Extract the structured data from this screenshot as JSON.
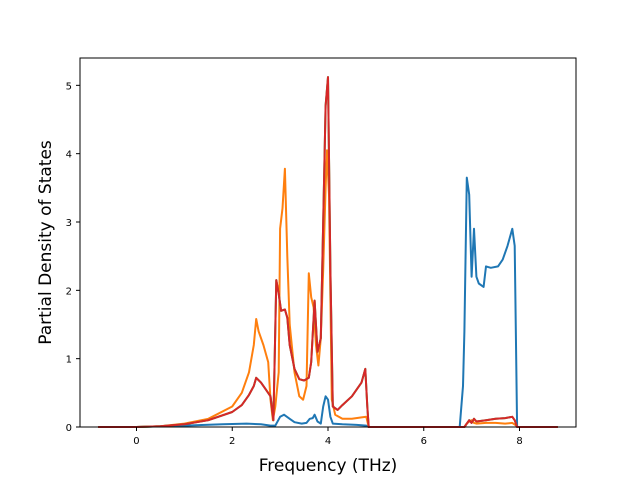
{
  "chart_data": {
    "type": "line",
    "title": "",
    "xlabel": "Frequency (THz)",
    "ylabel": "Partial Density of States",
    "xlim": [
      -1.18,
      9.18
    ],
    "ylim": [
      0,
      5.4
    ],
    "xticks": [
      0,
      2,
      4,
      6,
      8
    ],
    "yticks": [
      0,
      1,
      2,
      3,
      4,
      5
    ],
    "grid": false,
    "legend": "none",
    "series": [
      {
        "color": "#1f77b4",
        "points": [
          [
            -0.8,
            0
          ],
          [
            0,
            0
          ],
          [
            1,
            0.02
          ],
          [
            1.8,
            0.04
          ],
          [
            2.3,
            0.05
          ],
          [
            2.6,
            0.04
          ],
          [
            2.8,
            0.02
          ],
          [
            2.9,
            0.02
          ],
          [
            3.0,
            0.15
          ],
          [
            3.08,
            0.18
          ],
          [
            3.2,
            0.12
          ],
          [
            3.3,
            0.07
          ],
          [
            3.45,
            0.05
          ],
          [
            3.55,
            0.06
          ],
          [
            3.62,
            0.12
          ],
          [
            3.68,
            0.13
          ],
          [
            3.72,
            0.18
          ],
          [
            3.78,
            0.08
          ],
          [
            3.85,
            0.05
          ],
          [
            3.9,
            0.3
          ],
          [
            3.95,
            0.45
          ],
          [
            4.0,
            0.4
          ],
          [
            4.05,
            0.15
          ],
          [
            4.1,
            0.05
          ],
          [
            4.3,
            0.04
          ],
          [
            4.6,
            0.03
          ],
          [
            4.8,
            0.02
          ],
          [
            4.85,
            0
          ],
          [
            5,
            0
          ],
          [
            6.5,
            0
          ],
          [
            6.75,
            0
          ],
          [
            6.82,
            0.6
          ],
          [
            6.85,
            1.4
          ],
          [
            6.9,
            3.65
          ],
          [
            6.95,
            3.4
          ],
          [
            7.0,
            2.2
          ],
          [
            7.05,
            2.9
          ],
          [
            7.1,
            2.2
          ],
          [
            7.15,
            2.1
          ],
          [
            7.25,
            2.05
          ],
          [
            7.3,
            2.35
          ],
          [
            7.4,
            2.33
          ],
          [
            7.55,
            2.35
          ],
          [
            7.65,
            2.45
          ],
          [
            7.75,
            2.65
          ],
          [
            7.85,
            2.9
          ],
          [
            7.9,
            2.65
          ],
          [
            7.93,
            1.0
          ],
          [
            7.95,
            0
          ],
          [
            8.8,
            0
          ]
        ]
      },
      {
        "color": "#ff7f0e",
        "points": [
          [
            -0.8,
            0
          ],
          [
            0,
            0
          ],
          [
            0.5,
            0.01
          ],
          [
            1,
            0.05
          ],
          [
            1.5,
            0.12
          ],
          [
            2.0,
            0.3
          ],
          [
            2.2,
            0.5
          ],
          [
            2.35,
            0.8
          ],
          [
            2.45,
            1.2
          ],
          [
            2.5,
            1.58
          ],
          [
            2.55,
            1.4
          ],
          [
            2.65,
            1.2
          ],
          [
            2.75,
            0.95
          ],
          [
            2.8,
            0.4
          ],
          [
            2.85,
            0.1
          ],
          [
            2.9,
            0.3
          ],
          [
            2.97,
            0.8
          ],
          [
            3.0,
            2.9
          ],
          [
            3.05,
            3.2
          ],
          [
            3.1,
            3.78
          ],
          [
            3.15,
            2.5
          ],
          [
            3.2,
            1.5
          ],
          [
            3.3,
            0.8
          ],
          [
            3.4,
            0.45
          ],
          [
            3.48,
            0.4
          ],
          [
            3.55,
            0.6
          ],
          [
            3.6,
            2.25
          ],
          [
            3.65,
            1.9
          ],
          [
            3.7,
            1.75
          ],
          [
            3.75,
            1.2
          ],
          [
            3.8,
            0.9
          ],
          [
            3.85,
            1.3
          ],
          [
            3.9,
            2.3
          ],
          [
            3.95,
            3.5
          ],
          [
            3.98,
            4.05
          ],
          [
            4.02,
            3.4
          ],
          [
            4.08,
            0.4
          ],
          [
            4.15,
            0.18
          ],
          [
            4.3,
            0.12
          ],
          [
            4.5,
            0.12
          ],
          [
            4.7,
            0.14
          ],
          [
            4.8,
            0.15
          ],
          [
            4.85,
            0
          ],
          [
            5,
            0
          ],
          [
            6.5,
            0
          ],
          [
            6.85,
            0
          ],
          [
            6.9,
            0.05
          ],
          [
            6.95,
            0.08
          ],
          [
            7.0,
            0.1
          ],
          [
            7.05,
            0.06
          ],
          [
            7.1,
            0.05
          ],
          [
            7.3,
            0.06
          ],
          [
            7.5,
            0.06
          ],
          [
            7.7,
            0.05
          ],
          [
            7.85,
            0.06
          ],
          [
            7.93,
            0.02
          ],
          [
            7.95,
            0
          ],
          [
            8.8,
            0
          ]
        ]
      },
      {
        "color": "#2ca02c",
        "points": [
          [
            -0.8,
            0
          ],
          [
            0,
            0
          ],
          [
            0.5,
            0.01
          ],
          [
            1,
            0.04
          ],
          [
            1.5,
            0.1
          ],
          [
            2.0,
            0.22
          ],
          [
            2.2,
            0.32
          ],
          [
            2.35,
            0.47
          ],
          [
            2.45,
            0.6
          ],
          [
            2.5,
            0.72
          ],
          [
            2.6,
            0.65
          ],
          [
            2.7,
            0.55
          ],
          [
            2.8,
            0.45
          ],
          [
            2.86,
            0.1
          ],
          [
            2.92,
            2.15
          ],
          [
            2.97,
            1.95
          ],
          [
            3.02,
            1.7
          ],
          [
            3.1,
            1.72
          ],
          [
            3.15,
            1.6
          ],
          [
            3.2,
            1.2
          ],
          [
            3.3,
            0.85
          ],
          [
            3.4,
            0.7
          ],
          [
            3.5,
            0.68
          ],
          [
            3.6,
            0.72
          ],
          [
            3.65,
            0.95
          ],
          [
            3.72,
            1.85
          ],
          [
            3.78,
            1.1
          ],
          [
            3.85,
            1.3
          ],
          [
            3.9,
            3.0
          ],
          [
            3.95,
            4.7
          ],
          [
            4.0,
            5.12
          ],
          [
            4.05,
            2.3
          ],
          [
            4.1,
            0.3
          ],
          [
            4.2,
            0.25
          ],
          [
            4.3,
            0.32
          ],
          [
            4.5,
            0.45
          ],
          [
            4.7,
            0.65
          ],
          [
            4.78,
            0.85
          ],
          [
            4.82,
            0.3
          ],
          [
            4.85,
            0
          ],
          [
            5,
            0
          ],
          [
            6.5,
            0
          ],
          [
            6.85,
            0
          ],
          [
            6.9,
            0.05
          ],
          [
            6.95,
            0.1
          ],
          [
            7.0,
            0.06
          ],
          [
            7.05,
            0.12
          ],
          [
            7.1,
            0.08
          ],
          [
            7.3,
            0.1
          ],
          [
            7.5,
            0.12
          ],
          [
            7.7,
            0.13
          ],
          [
            7.85,
            0.15
          ],
          [
            7.9,
            0.1
          ],
          [
            7.95,
            0
          ],
          [
            8.8,
            0
          ]
        ]
      },
      {
        "color": "#d62728",
        "points": [
          [
            -0.8,
            0
          ],
          [
            0,
            0
          ],
          [
            0.5,
            0.01
          ],
          [
            1,
            0.04
          ],
          [
            1.5,
            0.1
          ],
          [
            2.0,
            0.22
          ],
          [
            2.2,
            0.32
          ],
          [
            2.35,
            0.47
          ],
          [
            2.45,
            0.6
          ],
          [
            2.5,
            0.72
          ],
          [
            2.6,
            0.65
          ],
          [
            2.7,
            0.55
          ],
          [
            2.8,
            0.45
          ],
          [
            2.86,
            0.1
          ],
          [
            2.92,
            2.15
          ],
          [
            2.97,
            1.95
          ],
          [
            3.02,
            1.7
          ],
          [
            3.1,
            1.72
          ],
          [
            3.15,
            1.6
          ],
          [
            3.2,
            1.2
          ],
          [
            3.3,
            0.85
          ],
          [
            3.4,
            0.7
          ],
          [
            3.5,
            0.68
          ],
          [
            3.6,
            0.72
          ],
          [
            3.65,
            0.95
          ],
          [
            3.72,
            1.85
          ],
          [
            3.78,
            1.1
          ],
          [
            3.85,
            1.3
          ],
          [
            3.9,
            3.0
          ],
          [
            3.95,
            4.7
          ],
          [
            4.0,
            5.12
          ],
          [
            4.05,
            2.3
          ],
          [
            4.1,
            0.3
          ],
          [
            4.2,
            0.25
          ],
          [
            4.3,
            0.32
          ],
          [
            4.5,
            0.45
          ],
          [
            4.7,
            0.65
          ],
          [
            4.78,
            0.85
          ],
          [
            4.82,
            0.3
          ],
          [
            4.85,
            0
          ],
          [
            5,
            0
          ],
          [
            6.5,
            0
          ],
          [
            6.85,
            0
          ],
          [
            6.9,
            0.05
          ],
          [
            6.95,
            0.1
          ],
          [
            7.0,
            0.06
          ],
          [
            7.05,
            0.12
          ],
          [
            7.1,
            0.08
          ],
          [
            7.3,
            0.1
          ],
          [
            7.5,
            0.12
          ],
          [
            7.7,
            0.13
          ],
          [
            7.85,
            0.15
          ],
          [
            7.9,
            0.1
          ],
          [
            7.95,
            0
          ],
          [
            8.8,
            0
          ]
        ]
      }
    ]
  }
}
